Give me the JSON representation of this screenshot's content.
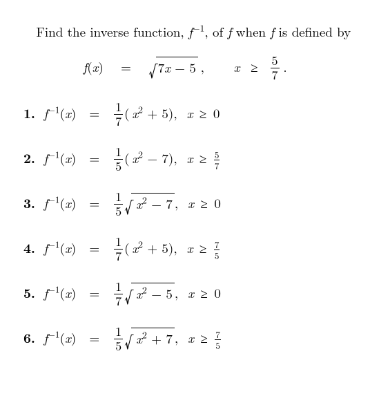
{
  "intro": {
    "part1": "Find the inverse function, ",
    "finv": "f",
    "finv_sup": "−1",
    "part2": ", of ",
    "f": "f",
    "part3": " when ",
    "f2": "f",
    "part4": " is defined by"
  },
  "display": {
    "lhs_f": "f",
    "lhs_open": "(",
    "lhs_x": "x",
    "lhs_close": ")",
    "eq": "=",
    "sqrt_inner_a": "7",
    "sqrt_inner_x": "x",
    "sqrt_inner_b": " − 5",
    "comma": ",",
    "dom_x": "x",
    "dom_rel": "≥",
    "dom_frac_num": "5",
    "dom_frac_den": "7",
    "dot": "."
  },
  "answers": [
    {
      "n": "1.",
      "coef_num": "1",
      "coef_den": "7",
      "type": "poly",
      "poly_open": "(",
      "poly_x": "x",
      "poly_sup": "2",
      "poly_op": " + 5",
      "poly_close": ")",
      "comma": ",",
      "dom_x": "x",
      "dom_rel": "≥",
      "dom_rhs": "0",
      "dom_frac": null
    },
    {
      "n": "2.",
      "coef_num": "1",
      "coef_den": "5",
      "type": "poly",
      "poly_open": "(",
      "poly_x": "x",
      "poly_sup": "2",
      "poly_op": " − 7",
      "poly_close": ")",
      "comma": ",",
      "dom_x": "x",
      "dom_rel": "≥",
      "dom_rhs": null,
      "dom_frac": {
        "num": "5",
        "den": "7"
      }
    },
    {
      "n": "3.",
      "coef_num": "1",
      "coef_den": "5",
      "type": "sqrt",
      "sqrt_x": "x",
      "sqrt_sup": "2",
      "sqrt_op": " − 7",
      "comma": ",",
      "dom_x": "x",
      "dom_rel": "≥",
      "dom_rhs": "0",
      "dom_frac": null
    },
    {
      "n": "4.",
      "coef_num": "1",
      "coef_den": "7",
      "type": "poly",
      "poly_open": "(",
      "poly_x": "x",
      "poly_sup": "2",
      "poly_op": " + 5",
      "poly_close": ")",
      "comma": ",",
      "dom_x": "x",
      "dom_rel": "≥",
      "dom_rhs": null,
      "dom_frac": {
        "num": "7",
        "den": "5"
      }
    },
    {
      "n": "5.",
      "coef_num": "1",
      "coef_den": "7",
      "type": "sqrt",
      "sqrt_x": "x",
      "sqrt_sup": "2",
      "sqrt_op": " − 5",
      "comma": ",",
      "dom_x": "x",
      "dom_rel": "≥",
      "dom_rhs": "0",
      "dom_frac": null
    },
    {
      "n": "6.",
      "coef_num": "1",
      "coef_den": "5",
      "type": "sqrt",
      "sqrt_x": "x",
      "sqrt_sup": "2",
      "sqrt_op": " + 7",
      "comma": ",",
      "dom_x": "x",
      "dom_rel": "≥",
      "dom_rhs": null,
      "dom_frac": {
        "num": "7",
        "den": "5"
      }
    }
  ],
  "shared": {
    "finv_f": "f",
    "finv_sup": "−1",
    "open": "(",
    "x": "x",
    "close": ")",
    "eq": "="
  }
}
